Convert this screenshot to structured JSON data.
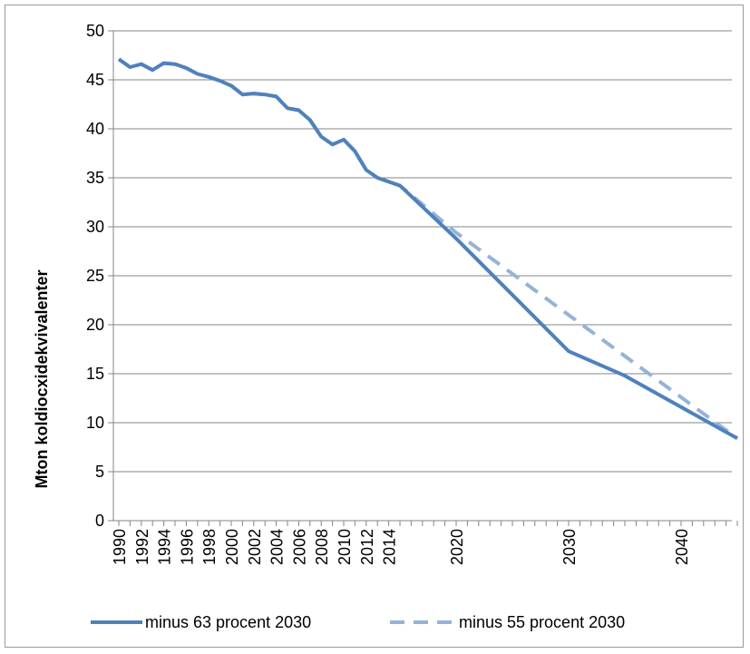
{
  "chart_data": {
    "type": "line",
    "title": "",
    "xlabel": "",
    "ylabel": "Mton koldiocxidekvivalenter",
    "ylim": [
      0,
      50
    ],
    "yticks": [
      0,
      5,
      10,
      15,
      20,
      25,
      30,
      35,
      40,
      45,
      50
    ],
    "xlim": [
      1990,
      2045
    ],
    "xtick_labels": [
      "1990",
      "1992",
      "1994",
      "1996",
      "1998",
      "2000",
      "2002",
      "2004",
      "2006",
      "2008",
      "2010",
      "2012",
      "2014",
      "2020",
      "2030",
      "2040"
    ],
    "grid": "horizontal",
    "legend_position": "bottom",
    "series": [
      {
        "name": "minus 63 procent 2030",
        "color": "#4f81bd",
        "style": "solid",
        "x": [
          1990,
          1991,
          1992,
          1993,
          1994,
          1995,
          1996,
          1997,
          1998,
          1999,
          2000,
          2001,
          2002,
          2003,
          2004,
          2005,
          2006,
          2007,
          2008,
          2009,
          2010,
          2011,
          2012,
          2013,
          2014,
          2015,
          2020,
          2030,
          2035,
          2045
        ],
        "y": [
          47.1,
          46.3,
          46.6,
          46.0,
          46.7,
          46.6,
          46.2,
          45.6,
          45.3,
          44.9,
          44.4,
          43.5,
          43.6,
          43.5,
          43.3,
          42.1,
          41.9,
          40.9,
          39.2,
          38.4,
          38.9,
          37.7,
          35.8,
          35.0,
          34.6,
          34.2,
          28.8,
          17.3,
          14.8,
          8.4
        ]
      },
      {
        "name": "minus 55 procent 2030",
        "color": "#95b3d7",
        "style": "dashed",
        "x": [
          1990,
          1991,
          1992,
          1993,
          1994,
          1995,
          1996,
          1997,
          1998,
          1999,
          2000,
          2001,
          2002,
          2003,
          2004,
          2005,
          2006,
          2007,
          2008,
          2009,
          2010,
          2011,
          2012,
          2013,
          2014,
          2015,
          2020,
          2030,
          2045
        ],
        "y": [
          47.1,
          46.3,
          46.6,
          46.0,
          46.7,
          46.6,
          46.2,
          45.6,
          45.3,
          44.9,
          44.4,
          43.5,
          43.6,
          43.5,
          43.3,
          42.1,
          41.9,
          40.9,
          39.2,
          38.4,
          38.9,
          37.7,
          35.8,
          35.0,
          34.6,
          34.2,
          29.4,
          21.0,
          8.4
        ]
      }
    ]
  }
}
